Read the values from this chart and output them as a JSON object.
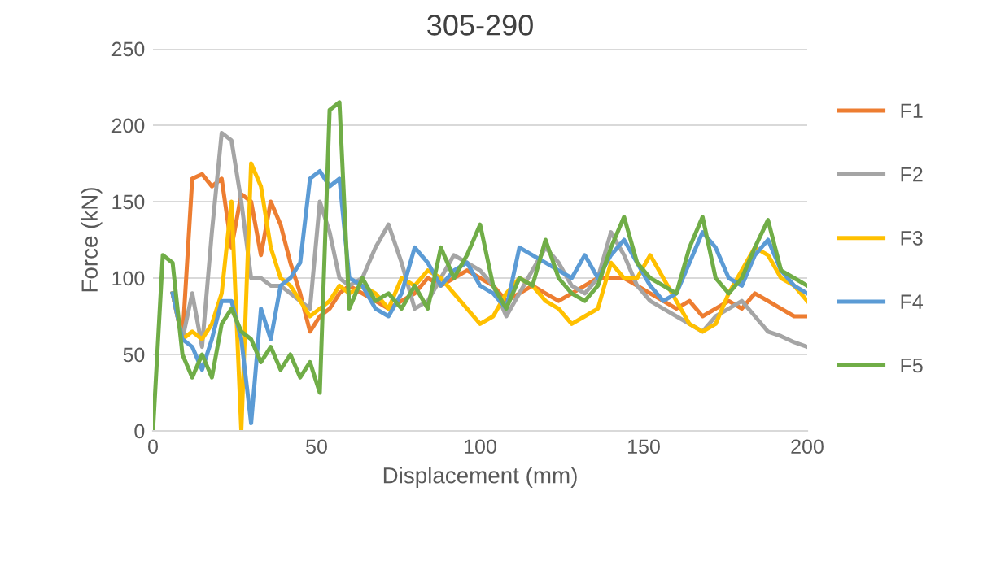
{
  "chart_data": {
    "type": "line",
    "title": "305-290",
    "xlabel": "Displacement (mm)",
    "ylabel": "Force (kN)",
    "x": [
      0,
      3,
      6,
      9,
      12,
      15,
      18,
      21,
      24,
      27,
      30,
      33,
      36,
      39,
      42,
      45,
      48,
      51,
      54,
      57,
      60,
      64,
      68,
      72,
      76,
      80,
      84,
      88,
      92,
      96,
      100,
      104,
      108,
      112,
      116,
      120,
      124,
      128,
      132,
      136,
      140,
      144,
      148,
      152,
      156,
      160,
      164,
      168,
      172,
      176,
      180,
      184,
      188,
      192,
      196,
      200
    ],
    "series": [
      {
        "name": "F1",
        "color": "#ed7d31",
        "values": [
          null,
          null,
          90,
          60,
          165,
          168,
          160,
          165,
          120,
          155,
          150,
          115,
          150,
          135,
          110,
          90,
          65,
          75,
          80,
          90,
          95,
          90,
          85,
          80,
          85,
          90,
          100,
          95,
          100,
          105,
          100,
          95,
          85,
          90,
          95,
          90,
          85,
          90,
          95,
          100,
          100,
          100,
          95,
          90,
          85,
          80,
          85,
          75,
          80,
          85,
          80,
          90,
          85,
          80,
          75,
          75
        ]
      },
      {
        "name": "F2",
        "color": "#a5a5a5",
        "values": [
          null,
          null,
          90,
          60,
          90,
          55,
          130,
          195,
          190,
          150,
          100,
          100,
          95,
          95,
          90,
          85,
          80,
          150,
          130,
          100,
          95,
          100,
          120,
          135,
          110,
          80,
          85,
          100,
          115,
          110,
          105,
          95,
          75,
          90,
          105,
          120,
          110,
          95,
          90,
          100,
          130,
          115,
          95,
          85,
          80,
          75,
          70,
          65,
          75,
          80,
          85,
          75,
          65,
          62,
          58,
          55
        ]
      },
      {
        "name": "F3",
        "color": "#ffc000",
        "values": [
          null,
          null,
          90,
          60,
          65,
          60,
          70,
          90,
          150,
          0,
          175,
          160,
          120,
          100,
          95,
          85,
          75,
          80,
          85,
          95,
          90,
          95,
          90,
          80,
          100,
          95,
          105,
          100,
          90,
          80,
          70,
          75,
          90,
          100,
          95,
          85,
          80,
          70,
          75,
          80,
          110,
          100,
          100,
          115,
          100,
          85,
          70,
          65,
          70,
          90,
          105,
          120,
          115,
          100,
          95,
          85
        ]
      },
      {
        "name": "F4",
        "color": "#5b9bd5",
        "values": [
          null,
          null,
          90,
          60,
          55,
          40,
          60,
          85,
          85,
          60,
          5,
          80,
          60,
          95,
          100,
          110,
          165,
          170,
          160,
          165,
          100,
          95,
          80,
          75,
          90,
          120,
          110,
          95,
          105,
          110,
          95,
          90,
          80,
          120,
          115,
          110,
          105,
          100,
          115,
          100,
          115,
          125,
          110,
          95,
          85,
          90,
          110,
          130,
          120,
          100,
          95,
          115,
          125,
          105,
          95,
          90
        ]
      },
      {
        "name": "F5",
        "color": "#70ad47",
        "values": [
          0,
          115,
          110,
          50,
          35,
          50,
          35,
          70,
          80,
          65,
          60,
          45,
          55,
          40,
          50,
          35,
          45,
          25,
          210,
          215,
          80,
          100,
          85,
          90,
          80,
          95,
          80,
          120,
          100,
          115,
          135,
          95,
          80,
          100,
          95,
          125,
          100,
          90,
          85,
          95,
          120,
          140,
          110,
          100,
          95,
          90,
          120,
          140,
          100,
          90,
          100,
          120,
          138,
          105,
          100,
          95
        ]
      }
    ],
    "xlim": [
      0,
      200
    ],
    "xticks": [
      0,
      50,
      100,
      150,
      200
    ],
    "ylim": [
      0,
      250
    ],
    "yticks": [
      0,
      50,
      100,
      150,
      200,
      250
    ],
    "grid": "y",
    "legend": "right",
    "marker": "none",
    "line_style": "solid"
  }
}
